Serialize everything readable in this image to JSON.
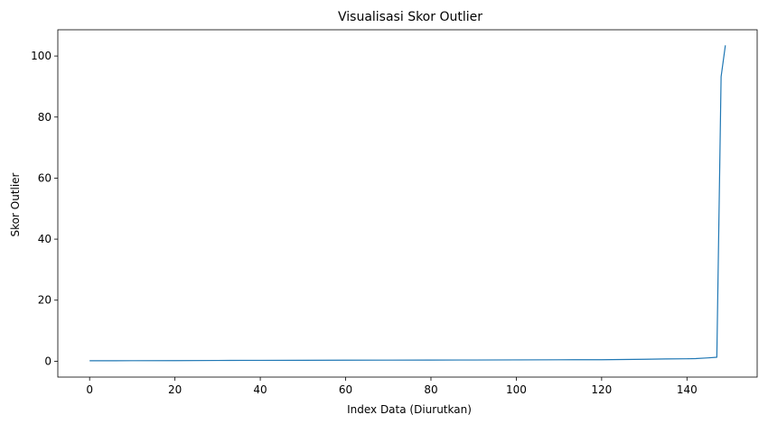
{
  "chart_data": {
    "type": "line",
    "title": "Visualisasi Skor Outlier",
    "xlabel": "Index Data (Diurutkan)",
    "ylabel": "Skor Outlier",
    "xlim": [
      -7.45,
      156.45
    ],
    "ylim": [
      -5.2,
      108.6
    ],
    "xticks": [
      0,
      20,
      40,
      60,
      80,
      100,
      120,
      140
    ],
    "yticks": [
      0,
      20,
      40,
      60,
      80,
      100
    ],
    "grid": false,
    "line_color": "#1f77b4",
    "series": [
      {
        "x": [
          0,
          10,
          20,
          30,
          40,
          50,
          60,
          70,
          80,
          90,
          100,
          110,
          120,
          125,
          130,
          135,
          140,
          142,
          145,
          147,
          148,
          149
        ],
        "y": [
          0.15,
          0.17,
          0.2,
          0.25,
          0.28,
          0.31,
          0.34,
          0.36,
          0.38,
          0.4,
          0.43,
          0.47,
          0.5,
          0.56,
          0.63,
          0.75,
          0.8,
          0.85,
          1.1,
          1.3,
          93.2,
          103.5
        ]
      }
    ]
  }
}
